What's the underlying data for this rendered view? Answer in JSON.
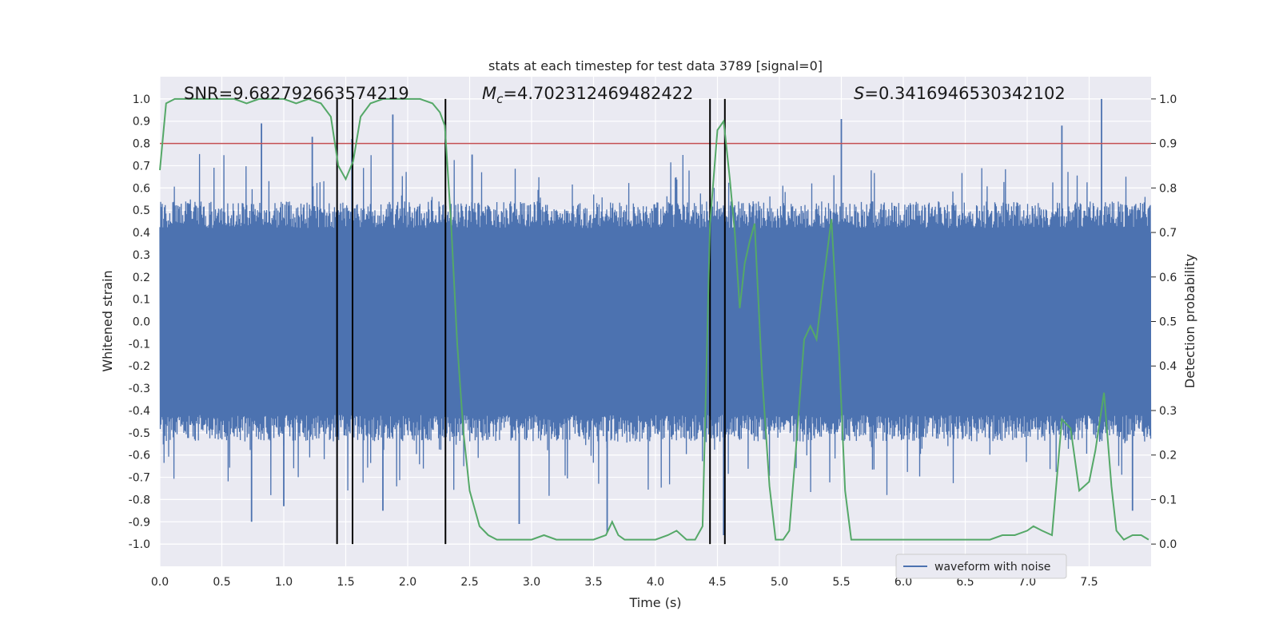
{
  "chart_data": {
    "type": "line",
    "title": "stats at each timestep for test data 3789 [signal=0]",
    "xlabel": "Time (s)",
    "ylabel": "Whitened strain",
    "y2label": "Detection probability",
    "xlim": [
      0,
      8
    ],
    "ylim": [
      -1.1,
      1.1
    ],
    "y2lim": [
      -0.05,
      1.05
    ],
    "x_ticks": [
      "0.0",
      "0.5",
      "1.0",
      "1.5",
      "2.0",
      "2.5",
      "3.0",
      "3.5",
      "4.0",
      "4.5",
      "5.0",
      "5.5",
      "6.0",
      "6.5",
      "7.0",
      "7.5"
    ],
    "x_tick_values": [
      0,
      0.5,
      1,
      1.5,
      2,
      2.5,
      3,
      3.5,
      4,
      4.5,
      5,
      5.5,
      6,
      6.5,
      7,
      7.5
    ],
    "y_ticks": [
      "1.0",
      "0.9",
      "0.8",
      "0.7",
      "0.6",
      "0.5",
      "0.4",
      "0.3",
      "0.2",
      "0.1",
      "0.0",
      "-0.1",
      "-0.2",
      "-0.3",
      "-0.4",
      "-0.5",
      "-0.6",
      "-0.7",
      "-0.8",
      "-0.9",
      "-1.0"
    ],
    "y_tick_values": [
      1.0,
      0.9,
      0.8,
      0.7,
      0.6,
      0.5,
      0.4,
      0.3,
      0.2,
      0.1,
      0.0,
      -0.1,
      -0.2,
      -0.3,
      -0.4,
      -0.5,
      -0.6,
      -0.7,
      -0.8,
      -0.9,
      -1.0
    ],
    "y2_ticks": [
      "1.0",
      "0.9",
      "0.8",
      "0.7",
      "0.6",
      "0.5",
      "0.4",
      "0.3",
      "0.2",
      "0.1",
      "0.0"
    ],
    "y2_tick_values": [
      1.0,
      0.9,
      0.8,
      0.7,
      0.6,
      0.5,
      0.4,
      0.3,
      0.2,
      0.1,
      0.0
    ],
    "annotations": {
      "snr": "SNR=9.682792663574219",
      "mc_symbol": "M",
      "mc_sub": "c",
      "mc_value": "=4.702312469482422",
      "s_symbol": "S",
      "s_value": "=0.3416946530342102"
    },
    "legend": {
      "label": "waveform with noise",
      "location": "lower-right"
    },
    "threshold": {
      "value": 0.9,
      "axis": "y2",
      "color": "#c44e52"
    },
    "vlines": [
      1.43,
      1.555,
      2.305,
      4.44,
      4.56
    ],
    "waveform": {
      "name": "waveform with noise",
      "color": "#4c72b0",
      "peaks": [
        {
          "x": 0.82,
          "y": 0.89
        },
        {
          "x": 1.23,
          "y": 0.83
        },
        {
          "x": 1.88,
          "y": 0.93
        },
        {
          "x": 1.55,
          "y": 0.82
        },
        {
          "x": 2.52,
          "y": 0.75
        },
        {
          "x": 5.5,
          "y": 0.91
        },
        {
          "x": 7.6,
          "y": 1.0
        },
        {
          "x": 7.28,
          "y": 0.88
        },
        {
          "x": 0.74,
          "y": -0.9
        },
        {
          "x": 1.0,
          "y": -0.83
        },
        {
          "x": 1.8,
          "y": -0.85
        },
        {
          "x": 2.9,
          "y": -0.91
        },
        {
          "x": 3.61,
          "y": -0.95
        },
        {
          "x": 4.55,
          "y": -0.96
        },
        {
          "x": 7.85,
          "y": -0.85
        }
      ]
    },
    "detection_probability": {
      "name": "detection probability",
      "color": "#55a868",
      "x": [
        0.0,
        0.05,
        0.12,
        0.2,
        0.3,
        0.4,
        0.5,
        0.6,
        0.7,
        0.8,
        0.9,
        1.0,
        1.1,
        1.2,
        1.3,
        1.38,
        1.44,
        1.5,
        1.56,
        1.62,
        1.7,
        1.8,
        1.9,
        2.0,
        2.1,
        2.2,
        2.26,
        2.3,
        2.35,
        2.4,
        2.45,
        2.5,
        2.58,
        2.65,
        2.72,
        2.8,
        2.9,
        3.0,
        3.1,
        3.2,
        3.3,
        3.4,
        3.5,
        3.6,
        3.65,
        3.7,
        3.75,
        3.8,
        3.9,
        4.0,
        4.1,
        4.17,
        4.25,
        4.32,
        4.38,
        4.44,
        4.5,
        4.55,
        4.6,
        4.64,
        4.68,
        4.72,
        4.76,
        4.8,
        4.86,
        4.92,
        4.97,
        5.03,
        5.08,
        5.13,
        5.2,
        5.25,
        5.3,
        5.35,
        5.42,
        5.48,
        5.53,
        5.58,
        5.7,
        5.9,
        6.1,
        6.3,
        6.5,
        6.7,
        6.8,
        6.9,
        7.0,
        7.05,
        7.12,
        7.2,
        7.28,
        7.35,
        7.42,
        7.5,
        7.55,
        7.62,
        7.68,
        7.72,
        7.78,
        7.85,
        7.92,
        7.98
      ],
      "y": [
        0.84,
        0.99,
        1.0,
        1.0,
        1.0,
        1.0,
        1.0,
        1.0,
        0.99,
        1.0,
        1.0,
        1.0,
        0.99,
        1.0,
        0.99,
        0.96,
        0.85,
        0.82,
        0.86,
        0.96,
        0.99,
        1.0,
        1.0,
        1.0,
        1.0,
        0.99,
        0.97,
        0.94,
        0.72,
        0.45,
        0.25,
        0.12,
        0.04,
        0.02,
        0.01,
        0.01,
        0.01,
        0.01,
        0.02,
        0.01,
        0.01,
        0.01,
        0.01,
        0.02,
        0.05,
        0.02,
        0.01,
        0.01,
        0.01,
        0.01,
        0.02,
        0.03,
        0.01,
        0.01,
        0.04,
        0.72,
        0.93,
        0.95,
        0.82,
        0.7,
        0.53,
        0.63,
        0.68,
        0.72,
        0.38,
        0.13,
        0.01,
        0.01,
        0.03,
        0.2,
        0.46,
        0.49,
        0.46,
        0.58,
        0.73,
        0.44,
        0.12,
        0.01,
        0.01,
        0.01,
        0.01,
        0.01,
        0.01,
        0.01,
        0.02,
        0.02,
        0.03,
        0.04,
        0.03,
        0.02,
        0.28,
        0.26,
        0.12,
        0.14,
        0.21,
        0.34,
        0.13,
        0.03,
        0.01,
        0.02,
        0.02,
        0.01
      ]
    }
  }
}
